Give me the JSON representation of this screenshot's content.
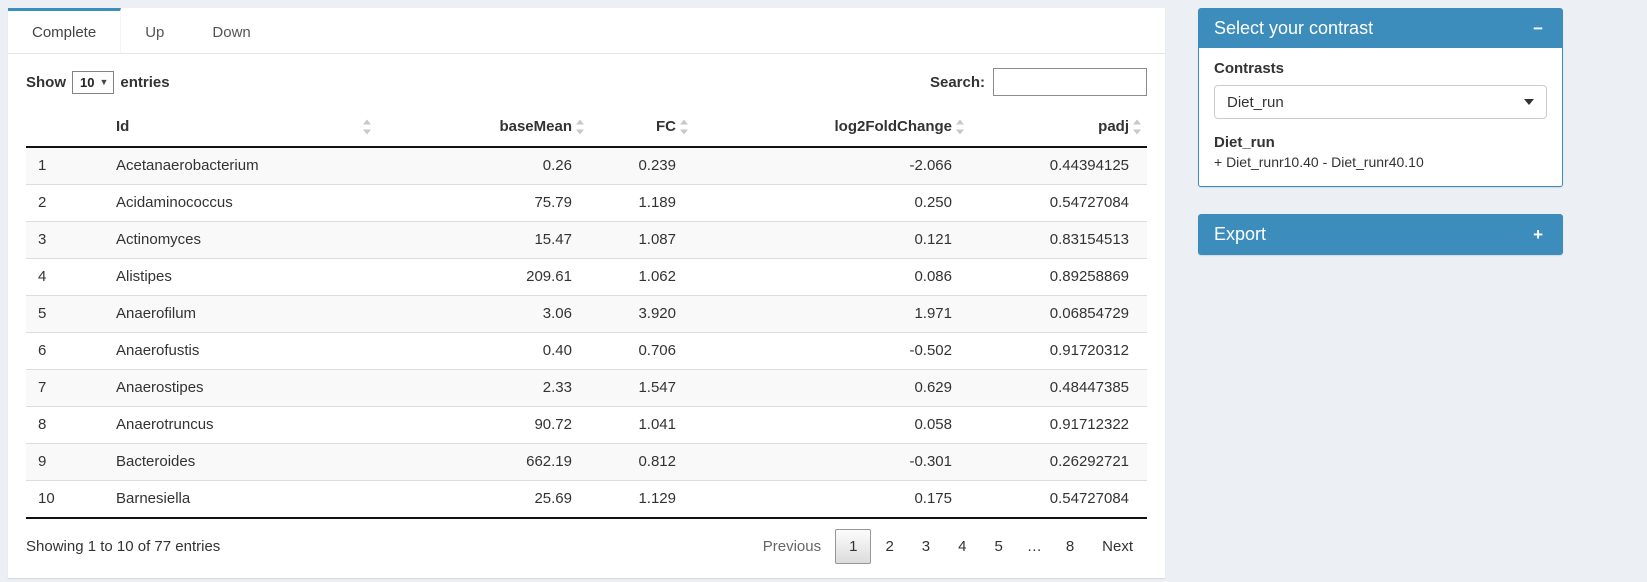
{
  "colors": {
    "primary": "#3c8dbc",
    "page_bg": "#ecf0f5"
  },
  "tabs": [
    {
      "label": "Complete",
      "active": true
    },
    {
      "label": "Up",
      "active": false
    },
    {
      "label": "Down",
      "active": false
    }
  ],
  "length_menu": {
    "show_label": "Show",
    "selected": "10",
    "entries_label": "entries"
  },
  "search": {
    "label": "Search:",
    "value": "",
    "placeholder": ""
  },
  "table": {
    "columns": [
      "",
      "Id",
      "baseMean",
      "FC",
      "log2FoldChange",
      "padj"
    ],
    "column_keys": [
      "index",
      "id",
      "baseMean",
      "FC",
      "log2FoldChange",
      "padj"
    ],
    "rows": [
      [
        "1",
        "Acetanaerobacterium",
        "0.26",
        "0.239",
        "-2.066",
        "0.44394125"
      ],
      [
        "2",
        "Acidaminococcus",
        "75.79",
        "1.189",
        "0.250",
        "0.54727084"
      ],
      [
        "3",
        "Actinomyces",
        "15.47",
        "1.087",
        "0.121",
        "0.83154513"
      ],
      [
        "4",
        "Alistipes",
        "209.61",
        "1.062",
        "0.086",
        "0.89258869"
      ],
      [
        "5",
        "Anaerofilum",
        "3.06",
        "3.920",
        "1.971",
        "0.06854729"
      ],
      [
        "6",
        "Anaerofustis",
        "0.40",
        "0.706",
        "-0.502",
        "0.91720312"
      ],
      [
        "7",
        "Anaerostipes",
        "2.33",
        "1.547",
        "0.629",
        "0.48447385"
      ],
      [
        "8",
        "Anaerotruncus",
        "90.72",
        "1.041",
        "0.058",
        "0.91712322"
      ],
      [
        "9",
        "Bacteroides",
        "662.19",
        "0.812",
        "-0.301",
        "0.26292721"
      ],
      [
        "10",
        "Barnesiella",
        "25.69",
        "1.129",
        "0.175",
        "0.54727084"
      ]
    ]
  },
  "footer": {
    "info": "Showing 1 to 10 of 77 entries",
    "pagination": {
      "previous": "Previous",
      "pages": [
        "1",
        "2",
        "3",
        "4",
        "5",
        "…",
        "8"
      ],
      "current": "1",
      "next": "Next"
    }
  },
  "contrast_box": {
    "title": "Select your contrast",
    "collapse_icon": "−",
    "contrasts_label": "Contrasts",
    "selected_contrast": "Diet_run",
    "contrast_name": "Diet_run",
    "contrast_formula": "+ Diet_runr10.40 - Diet_runr40.10"
  },
  "export_box": {
    "title": "Export",
    "expand_icon": "+"
  }
}
